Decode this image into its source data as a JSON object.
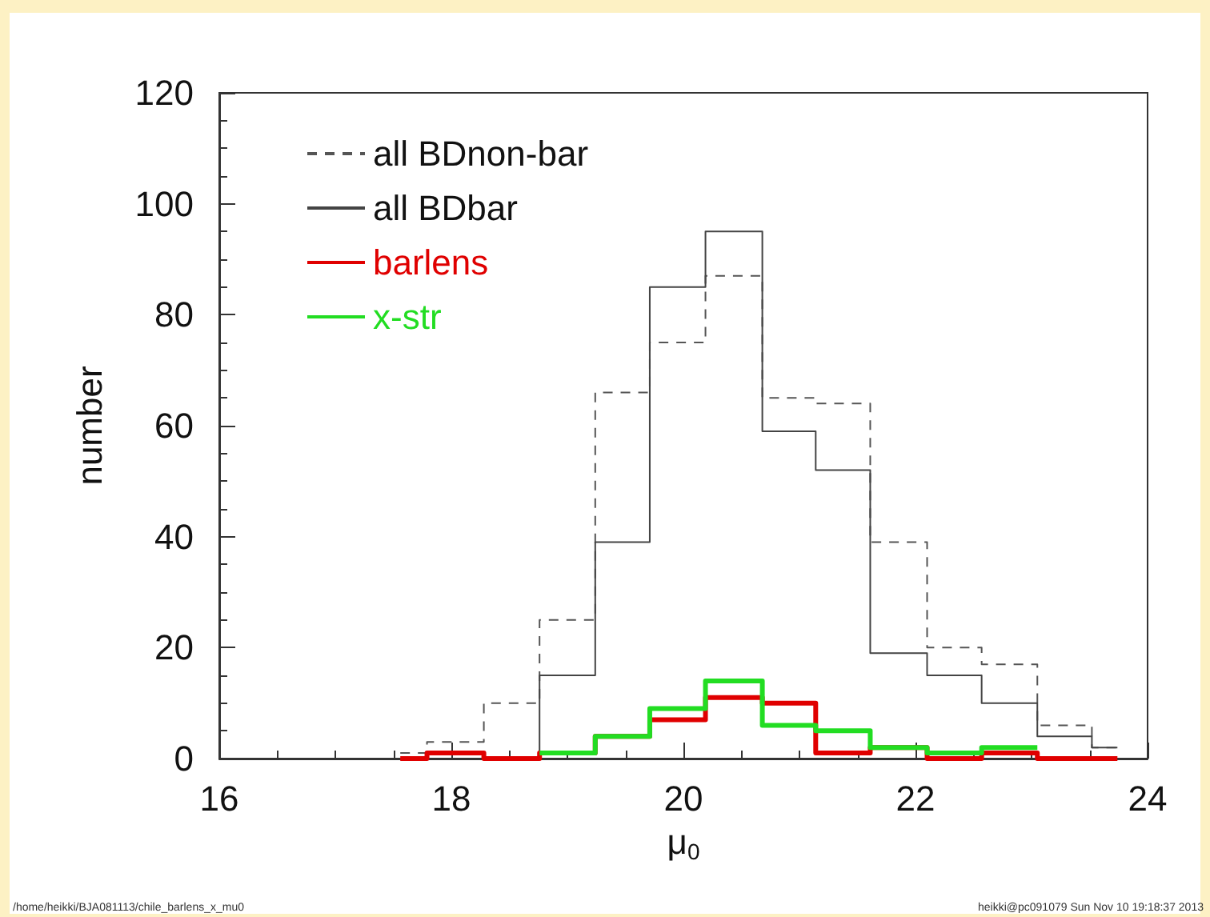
{
  "chart_data": {
    "type": "histogram",
    "xlabel": "μ$_{0}$",
    "ylabel": "number",
    "bins": [
      17.56,
      17.79,
      18.28,
      18.76,
      19.24,
      19.71,
      20.19,
      20.68,
      21.14,
      21.61,
      22.1,
      22.57,
      23.05,
      23.52,
      23.74
    ],
    "series": [
      {
        "name": "all BDnon-bar",
        "color": "#555555",
        "line_style": "dashed",
        "values": [
          1,
          3,
          10,
          25,
          66,
          75,
          87,
          65,
          64,
          39,
          20,
          17,
          6,
          2
        ]
      },
      {
        "name": "all BDbar",
        "color": "#444444",
        "line_style": "solid",
        "values": [
          0,
          1,
          0,
          15,
          39,
          85,
          95,
          59,
          52,
          19,
          15,
          10,
          4,
          2
        ]
      },
      {
        "name": "barlens",
        "color": "#e00000",
        "line_style": "solid",
        "values": [
          0,
          1,
          0,
          1,
          4,
          7,
          11,
          10,
          1,
          2,
          0,
          1,
          0,
          0
        ]
      },
      {
        "name": "x-str",
        "color": "#22dd22",
        "line_style": "solid",
        "bins": [
          18.76,
          19.24,
          19.71,
          20.19,
          20.68,
          21.14,
          21.61,
          22.1,
          22.57,
          23.05
        ],
        "values": [
          1,
          4,
          9,
          14,
          6,
          5,
          2,
          1,
          2
        ]
      }
    ],
    "xlim": [
      16,
      24
    ],
    "xticks": [
      16,
      18,
      20,
      22,
      24
    ],
    "ylim": [
      0,
      120
    ],
    "yticks": [
      0,
      20,
      40,
      60,
      80,
      100,
      120
    ],
    "grid": false,
    "legend": "top left",
    "annotations": [
      "/home/heikki/BJA081113/chile_barlens_x_mu0",
      "heikki@pc091079  Sun Nov 10 19:18:37 2013"
    ]
  }
}
